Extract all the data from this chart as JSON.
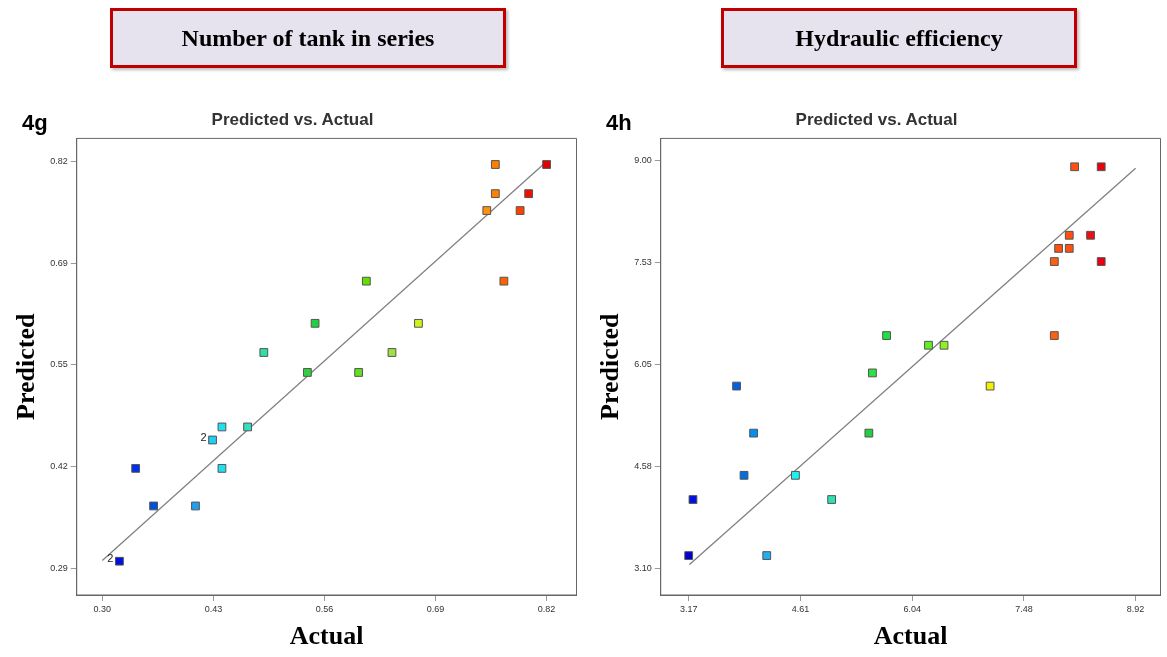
{
  "chart_data": [
    {
      "type": "scatter",
      "title": "Number of tank in series",
      "subtitle": "Predicted vs. Actual",
      "xlabel": "Actual",
      "ylabel": "Predicted",
      "legend": false,
      "grid": false,
      "annotations": [
        "4g",
        {
          "text": "2",
          "x": 0.429,
          "y": 0.457
        },
        {
          "text": "2",
          "x": 0.32,
          "y": 0.299
        }
      ],
      "xlim": [
        0.27,
        0.855
      ],
      "ylim": [
        0.255,
        0.85
      ],
      "xticks": [
        {
          "value": 0.3,
          "label": "0.30"
        },
        {
          "value": 0.43,
          "label": "0.43"
        },
        {
          "value": 0.56,
          "label": "0.56"
        },
        {
          "value": 0.69,
          "label": "0.69"
        },
        {
          "value": 0.82,
          "label": "0.82"
        }
      ],
      "yticks": [
        {
          "value": 0.29,
          "label": "0.29"
        },
        {
          "value": 0.4225,
          "label": "0.42"
        },
        {
          "value": 0.555,
          "label": "0.55"
        },
        {
          "value": 0.6875,
          "label": "0.69"
        },
        {
          "value": 0.82,
          "label": "0.82"
        }
      ],
      "series": [
        {
          "type": "line",
          "x": [
            0.3,
            0.82
          ],
          "values": [
            0.3,
            0.82
          ],
          "color": "#808080",
          "marker": "none"
        },
        {
          "marker": "square",
          "x": [
            0.76,
            0.82,
            0.76,
            0.799,
            0.75,
            0.789,
            0.77,
            0.609,
            0.549,
            0.67,
            0.489,
            0.639,
            0.54,
            0.6,
            0.44,
            0.47,
            0.429,
            0.44,
            0.339,
            0.36,
            0.409,
            0.32
          ],
          "values": [
            0.816,
            0.816,
            0.778,
            0.778,
            0.756,
            0.756,
            0.664,
            0.664,
            0.609,
            0.609,
            0.571,
            0.571,
            0.545,
            0.545,
            0.474,
            0.474,
            0.457,
            0.42,
            0.42,
            0.371,
            0.371,
            0.299
          ],
          "colors": [
            "#ff8000",
            "#e00000",
            "#ff8000",
            "#f01000",
            "#ff9010",
            "#ff4000",
            "#ff6000",
            "#60e000",
            "#20d040",
            "#d0f020",
            "#30e0a0",
            "#a0e040",
            "#30d040",
            "#60e020",
            "#20e0f0",
            "#30e0c0",
            "#20d0f0",
            "#20e0f0",
            "#0030f0",
            "#0050e0",
            "#20a0f0",
            "#0010e0"
          ]
        }
      ]
    },
    {
      "type": "scatter",
      "title": "Hydraulic efficiency",
      "subtitle": "Predicted vs. Actual",
      "xlabel": "Actual",
      "ylabel": "Predicted",
      "legend": false,
      "grid": false,
      "annotations": [
        "4h"
      ],
      "xlim": [
        2.81,
        9.24
      ],
      "ylim": [
        2.72,
        9.32
      ],
      "xticks": [
        {
          "value": 3.17,
          "label": "3.17"
        },
        {
          "value": 4.6075,
          "label": "4.61"
        },
        {
          "value": 6.045,
          "label": "6.04"
        },
        {
          "value": 7.4825,
          "label": "7.48"
        },
        {
          "value": 8.92,
          "label": "8.92"
        }
      ],
      "yticks": [
        {
          "value": 3.1,
          "label": "3.10"
        },
        {
          "value": 4.575,
          "label": "4.58"
        },
        {
          "value": 6.05,
          "label": "6.05"
        },
        {
          "value": 7.525,
          "label": "7.53"
        },
        {
          "value": 9.0,
          "label": "9.00"
        }
      ],
      "series": [
        {
          "type": "line",
          "x": [
            3.18,
            8.92
          ],
          "values": [
            3.16,
            8.89
          ],
          "color": "#808080",
          "marker": "none"
        },
        {
          "marker": "square",
          "x": [
            8.135,
            8.477,
            8.066,
            8.34,
            7.929,
            8.066,
            7.874,
            8.477,
            7.874,
            5.716,
            6.255,
            6.455,
            5.534,
            7.048,
            3.786,
            4.005,
            5.488,
            3.882,
            4.543,
            3.225,
            5.009,
            3.17,
            4.174
          ],
          "values": [
            8.91,
            8.91,
            7.92,
            7.92,
            7.73,
            7.73,
            7.54,
            7.54,
            6.47,
            6.47,
            6.33,
            6.33,
            5.93,
            5.74,
            5.74,
            5.06,
            5.06,
            4.45,
            4.45,
            4.1,
            4.1,
            3.29,
            3.29
          ],
          "colors": [
            "#ff5010",
            "#e80010",
            "#ff5010",
            "#e81010",
            "#ff5010",
            "#ff5010",
            "#ff6010",
            "#e80010",
            "#ff6010",
            "#20e040",
            "#60f020",
            "#90f020",
            "#30e040",
            "#f0f000",
            "#0060e0",
            "#0090f0",
            "#20d040",
            "#0070e0",
            "#20f0f0",
            "#0010e0",
            "#30e0b0",
            "#0000d0",
            "#20b0f0"
          ]
        }
      ]
    }
  ]
}
